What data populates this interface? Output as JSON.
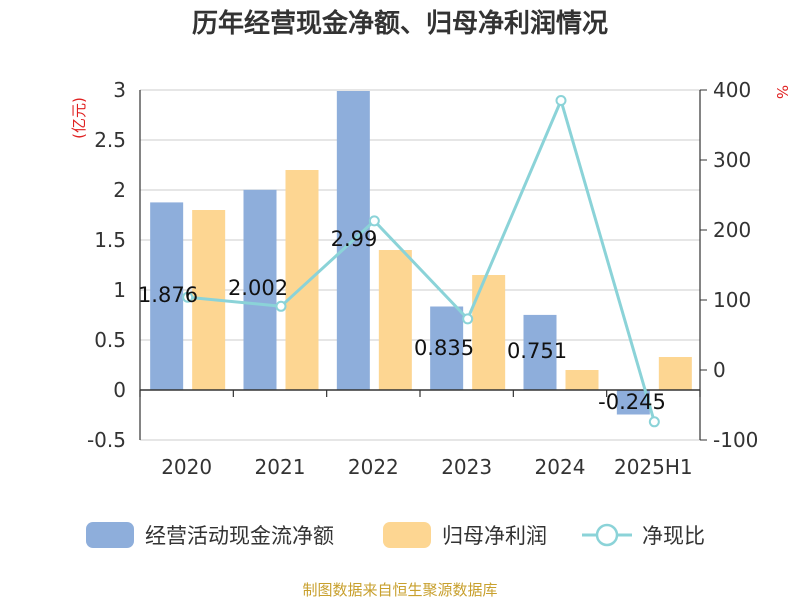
{
  "chart_data": {
    "type": "bar",
    "title": "历年经营现金净额、归母净利润情况",
    "categories": [
      "2020",
      "2021",
      "2022",
      "2023",
      "2024",
      "2025H1"
    ],
    "series": [
      {
        "name": "经营活动现金流净额",
        "kind": "bar",
        "axis": "left",
        "color": "#8eaedb",
        "values": [
          1.876,
          2.002,
          2.99,
          0.835,
          0.751,
          -0.245
        ],
        "data_labels": [
          "1.876",
          "2.002",
          "2.99",
          "0.835",
          "0.751",
          "-0.245"
        ]
      },
      {
        "name": "归母净利润",
        "kind": "bar",
        "axis": "left",
        "color": "#fdd692",
        "values": [
          1.8,
          2.2,
          1.4,
          1.15,
          0.2,
          0.33
        ]
      },
      {
        "name": "净现比",
        "kind": "line",
        "axis": "right",
        "color": "#8bd3d8",
        "values": [
          104,
          91,
          213,
          73,
          385,
          -74
        ]
      }
    ],
    "y_left": {
      "unit": "(亿元)",
      "range": [
        -0.5,
        3
      ],
      "ticks": [
        "-0.5",
        "0",
        "0.5",
        "1",
        "1.5",
        "2",
        "2.5",
        "3"
      ]
    },
    "y_right": {
      "unit": "%",
      "range": [
        -100,
        400
      ],
      "ticks": [
        "-100",
        "0",
        "100",
        "200",
        "300",
        "400"
      ]
    },
    "grid": true,
    "legend_position": "bottom"
  },
  "source_note": "制图数据来自恒生聚源数据库"
}
